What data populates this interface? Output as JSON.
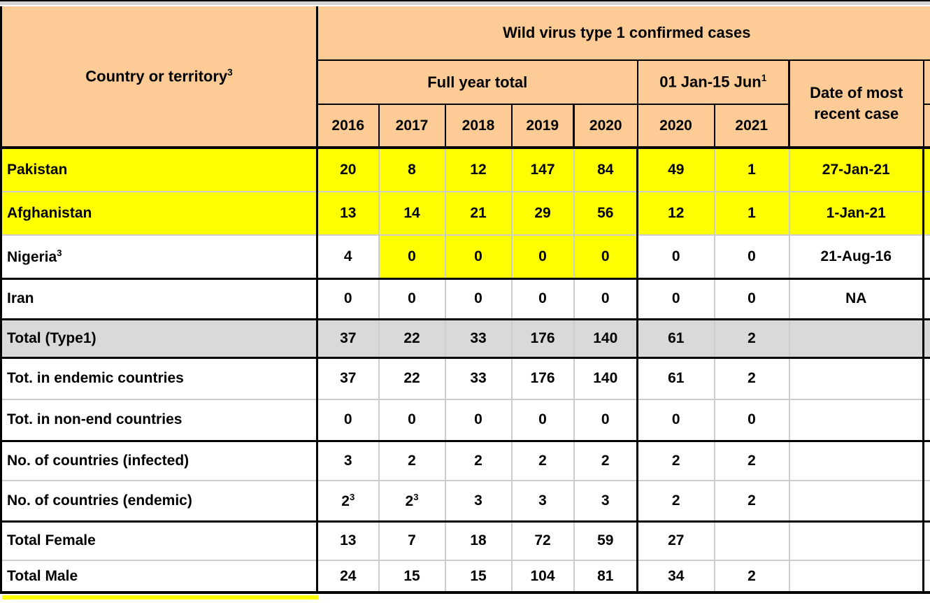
{
  "colors": {
    "header_bg": "#fccb96",
    "highlight_yellow": "#ffff00",
    "total_row_bg": "#d9d9d9"
  },
  "header": {
    "country_label": "Country or territory",
    "country_sup": "3",
    "title": "Wild virus type 1 confirmed cases",
    "full_year_label": "Full year total",
    "full_years": [
      "2016",
      "2017",
      "2018",
      "2019",
      "2020"
    ],
    "jan_jun_label": "01 Jan-15 Jun",
    "jan_jun_sup": "1",
    "jan_jun_years": [
      "2020",
      "2021"
    ],
    "date_line1": "Date of most",
    "date_line2": "recent case"
  },
  "rows": [
    {
      "label": "Pakistan",
      "values": [
        "20",
        "8",
        "12",
        "147",
        "84",
        "49",
        "1"
      ],
      "date": "27-Jan-21",
      "bg": "yellow",
      "border": "thin"
    },
    {
      "label": "Afghanistan",
      "values": [
        "13",
        "14",
        "21",
        "29",
        "56",
        "12",
        "1"
      ],
      "date": "1-Jan-21",
      "bg": "yellow",
      "border": "thin"
    },
    {
      "label": "Nigeria",
      "label_sup": "3",
      "values": [
        "4",
        "0",
        "0",
        "0",
        "0",
        "0",
        "0"
      ],
      "date": "21-Aug-16",
      "bg": "white",
      "yellow_value_indices": [
        1,
        2,
        3,
        4
      ],
      "border": "thick"
    },
    {
      "label": "Iran",
      "values": [
        "0",
        "0",
        "0",
        "0",
        "0",
        "0",
        "0"
      ],
      "date": "NA",
      "bg": "white",
      "border": "thick"
    },
    {
      "label": "Total (Type1)",
      "values": [
        "37",
        "22",
        "33",
        "176",
        "140",
        "61",
        "2"
      ],
      "date": "",
      "bg": "gray",
      "border": "thick"
    },
    {
      "label": "Tot. in endemic countries",
      "values": [
        "37",
        "22",
        "33",
        "176",
        "140",
        "61",
        "2"
      ],
      "date": "",
      "bg": "white",
      "border": "thin"
    },
    {
      "label": "Tot. in non-end countries",
      "values": [
        "0",
        "0",
        "0",
        "0",
        "0",
        "0",
        "0"
      ],
      "date": "",
      "bg": "white",
      "border": "thick"
    },
    {
      "label": "No. of countries (infected)",
      "values": [
        "3",
        "2",
        "2",
        "2",
        "2",
        "2",
        "2"
      ],
      "date": "",
      "bg": "white",
      "border": "thin"
    },
    {
      "label": "No. of countries (endemic)",
      "values": [
        "2^3",
        "2^3",
        "3",
        "3",
        "3",
        "2",
        "2"
      ],
      "date": "",
      "bg": "white",
      "border": "thick"
    },
    {
      "label": "Total Female",
      "values": [
        "13",
        "7",
        "18",
        "72",
        "59",
        "27",
        ""
      ],
      "date": "",
      "bg": "white",
      "border": "thin"
    },
    {
      "label": "Total Male",
      "values": [
        "24",
        "15",
        "15",
        "104",
        "81",
        "34",
        "2"
      ],
      "date": "",
      "bg": "white",
      "border": "last"
    }
  ]
}
